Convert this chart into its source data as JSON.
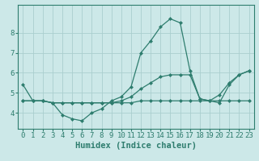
{
  "xlabel": "Humidex (Indice chaleur)",
  "ylabel": "",
  "background_color": "#cce8e8",
  "line_color": "#2e7d6e",
  "grid_color": "#aacece",
  "x_values": [
    0,
    1,
    2,
    3,
    4,
    5,
    6,
    7,
    8,
    9,
    10,
    11,
    12,
    13,
    14,
    15,
    16,
    17,
    18,
    19,
    20,
    21,
    22,
    23
  ],
  "series1": [
    5.4,
    4.6,
    4.6,
    4.5,
    3.9,
    3.7,
    3.6,
    4.0,
    4.2,
    4.6,
    4.8,
    5.3,
    7.0,
    7.6,
    8.3,
    8.7,
    8.5,
    6.1,
    4.7,
    4.6,
    4.5,
    5.4,
    5.9,
    6.1
  ],
  "series2": [
    4.6,
    4.6,
    4.6,
    4.5,
    4.5,
    4.5,
    4.5,
    4.5,
    4.5,
    4.5,
    4.5,
    4.5,
    4.6,
    4.6,
    4.6,
    4.6,
    4.6,
    4.6,
    4.6,
    4.6,
    4.6,
    4.6,
    4.6,
    4.6
  ],
  "series3": [
    4.6,
    4.6,
    4.6,
    4.5,
    4.5,
    4.5,
    4.5,
    4.5,
    4.5,
    4.5,
    4.6,
    4.8,
    5.2,
    5.5,
    5.8,
    5.9,
    5.9,
    5.9,
    4.7,
    4.6,
    4.9,
    5.5,
    5.9,
    6.1
  ],
  "ylim": [
    3.2,
    9.4
  ],
  "xlim": [
    -0.5,
    23.5
  ],
  "yticks": [
    4,
    5,
    6,
    7,
    8
  ],
  "xticks": [
    0,
    1,
    2,
    3,
    4,
    5,
    6,
    7,
    8,
    9,
    10,
    11,
    12,
    13,
    14,
    15,
    16,
    17,
    18,
    19,
    20,
    21,
    22,
    23
  ],
  "marker": "D",
  "markersize": 2.0,
  "linewidth": 0.9,
  "fontsize_label": 7.5,
  "fontsize_tick": 6.5
}
